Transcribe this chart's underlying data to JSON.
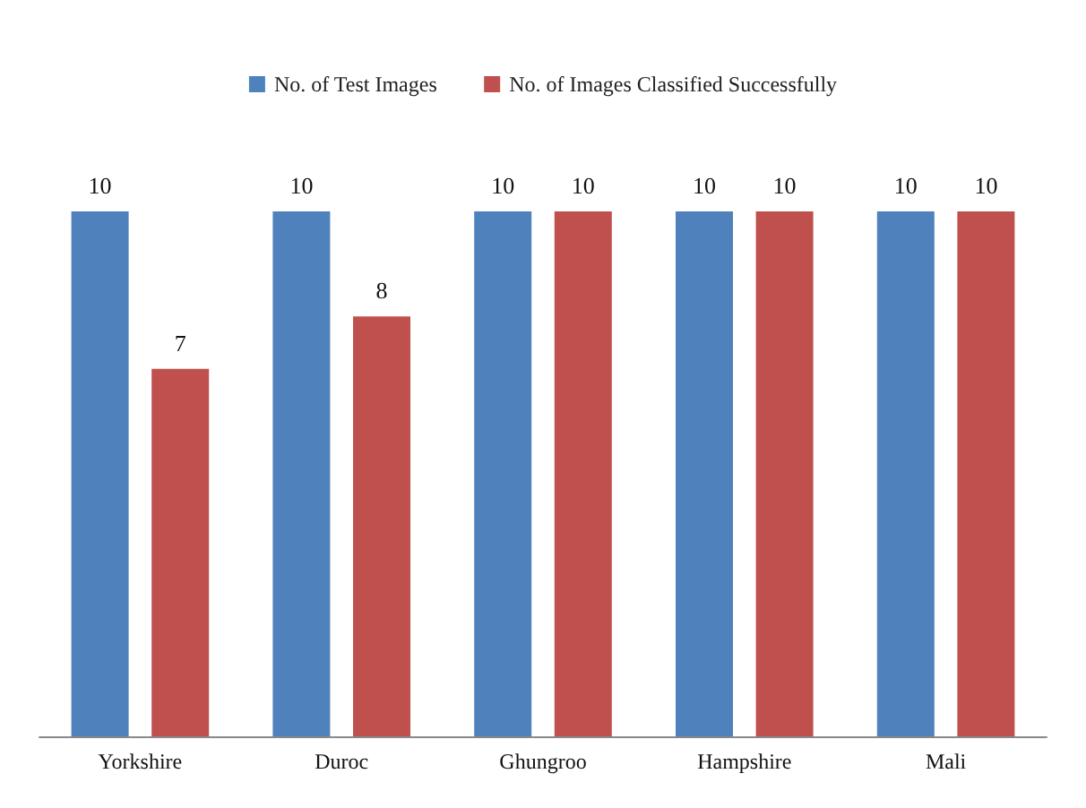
{
  "chart_data": {
    "type": "bar",
    "categories": [
      "Yorkshire",
      "Duroc",
      "Ghungroo",
      "Hampshire",
      "Mali"
    ],
    "series": [
      {
        "name": "No. of Test Images",
        "color": "#4f81bd",
        "values": [
          10,
          10,
          10,
          10,
          10
        ]
      },
      {
        "name": "No. of Images Classified Successfully",
        "color": "#c0504d",
        "values": [
          7,
          8,
          10,
          10,
          10
        ]
      }
    ],
    "data_labels": true,
    "legend": "top",
    "grid": false
  }
}
